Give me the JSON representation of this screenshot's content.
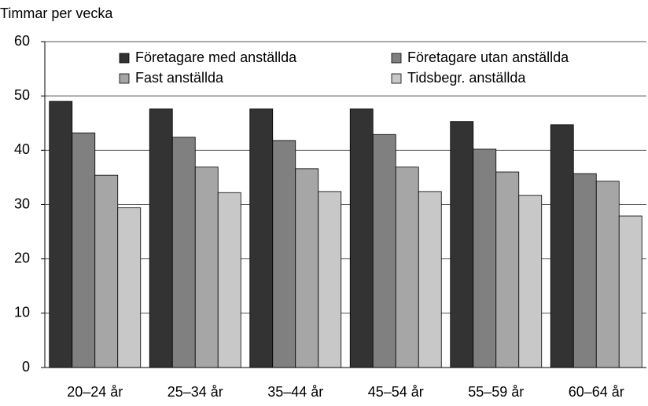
{
  "chart_data": {
    "type": "bar",
    "y_label": "Timmar per vecka",
    "categories": [
      "20–24 år",
      "25–34 år",
      "35–44 år",
      "45–54 år",
      "55–59 år",
      "60–64 år"
    ],
    "series": [
      {
        "name": "Företagare med anställda",
        "color": "#333333",
        "values": [
          49.0,
          47.6,
          47.6,
          47.6,
          45.3,
          44.7
        ]
      },
      {
        "name": "Företagare utan anställda",
        "color": "#808080",
        "values": [
          43.2,
          42.4,
          41.8,
          42.9,
          40.2,
          35.7
        ]
      },
      {
        "name": "Fast anställda",
        "color": "#a6a6a6",
        "values": [
          35.4,
          36.9,
          36.6,
          36.9,
          36.0,
          34.3
        ]
      },
      {
        "name": "Tidsbegr. anställda",
        "color": "#c8c8c8",
        "values": [
          29.4,
          32.2,
          32.4,
          32.4,
          31.7,
          27.9
        ]
      }
    ],
    "ylim": [
      0,
      60
    ],
    "yticks": [
      0,
      10,
      20,
      30,
      40,
      50,
      60
    ],
    "grid": true
  }
}
